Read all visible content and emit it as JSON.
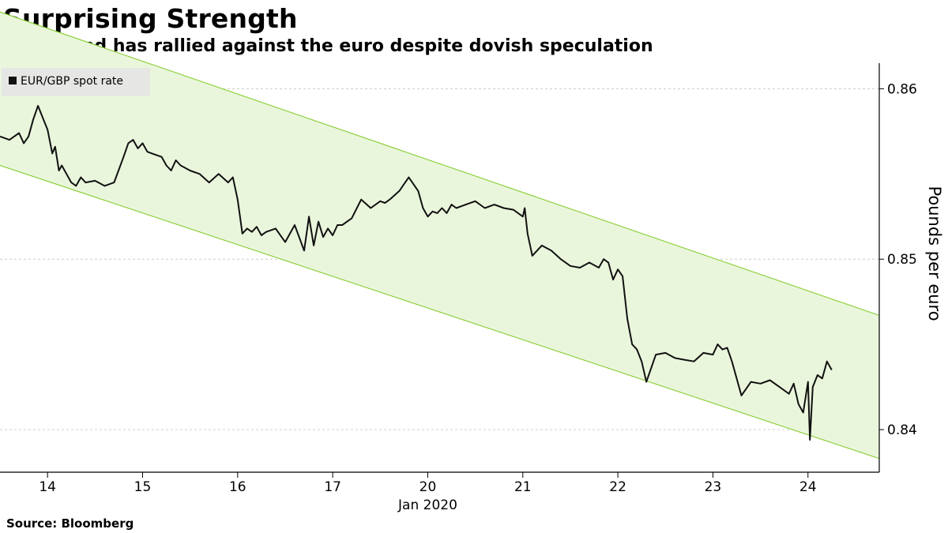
{
  "header": {
    "title": "Surprising Strength",
    "subtitle": "The pound has rallied against the euro despite dovish speculation"
  },
  "footer": {
    "source": "Source: Bloomberg"
  },
  "colors": {
    "line": "#111111",
    "channel_fill": "#eaf6dc",
    "channel_edge": "#8fd13f",
    "grid": "#cccccc"
  },
  "chart_data": {
    "type": "line",
    "title": "Surprising Strength",
    "subtitle": "The pound has rallied against the euro despite dovish speculation",
    "ylabel": "Pounds per euro",
    "xlabel": "Jan 2020",
    "ylim": [
      0.8375,
      0.8615
    ],
    "yticks": [
      0.84,
      0.85,
      0.86
    ],
    "ytick_labels": [
      "0.84",
      "0.85",
      "0.86"
    ],
    "y_axis_side": "right",
    "grid": "horizontal dashed",
    "xticks": [
      {
        "x": 1,
        "label": "14"
      },
      {
        "x": 2,
        "label": "15"
      },
      {
        "x": 3,
        "label": "16"
      },
      {
        "x": 4,
        "label": "17"
      },
      {
        "x": 5,
        "label": "20"
      },
      {
        "x": 6,
        "label": "21"
      },
      {
        "x": 7,
        "label": "22"
      },
      {
        "x": 8,
        "label": "23"
      },
      {
        "x": 9,
        "label": "24"
      }
    ],
    "xlim": [
      0.5,
      9.75
    ],
    "legend": {
      "position": "top-left",
      "entries": [
        "EUR/GBP spot rate"
      ]
    },
    "channel": {
      "upper": [
        {
          "x": 0.5,
          "y": 0.8645
        },
        {
          "x": 9.75,
          "y": 0.8467
        }
      ],
      "lower": [
        {
          "x": 0.5,
          "y": 0.8555
        },
        {
          "x": 9.75,
          "y": 0.8383
        }
      ]
    },
    "series": [
      {
        "name": "EUR/GBP spot rate",
        "x": [
          0.5,
          0.6,
          0.7,
          0.75,
          0.8,
          0.85,
          0.9,
          0.95,
          1.0,
          1.05,
          1.08,
          1.12,
          1.15,
          1.2,
          1.25,
          1.3,
          1.35,
          1.4,
          1.5,
          1.6,
          1.7,
          1.8,
          1.85,
          1.9,
          1.95,
          2.0,
          2.05,
          2.1,
          2.2,
          2.25,
          2.3,
          2.35,
          2.4,
          2.5,
          2.6,
          2.7,
          2.8,
          2.9,
          2.95,
          3.0,
          3.05,
          3.1,
          3.15,
          3.2,
          3.25,
          3.3,
          3.4,
          3.5,
          3.6,
          3.7,
          3.75,
          3.8,
          3.85,
          3.9,
          3.95,
          4.0,
          4.05,
          4.1,
          4.2,
          4.3,
          4.4,
          4.5,
          4.55,
          4.6,
          4.7,
          4.8,
          4.9,
          4.95,
          5.0,
          5.05,
          5.1,
          5.15,
          5.2,
          5.25,
          5.3,
          5.4,
          5.5,
          5.6,
          5.7,
          5.8,
          5.9,
          6.0,
          6.02,
          6.05,
          6.1,
          6.2,
          6.3,
          6.4,
          6.5,
          6.6,
          6.7,
          6.8,
          6.85,
          6.9,
          6.95,
          7.0,
          7.05,
          7.1,
          7.15,
          7.2,
          7.25,
          7.3,
          7.4,
          7.5,
          7.6,
          7.7,
          7.8,
          7.9,
          8.0,
          8.05,
          8.1,
          8.15,
          8.2,
          8.3,
          8.4,
          8.5,
          8.6,
          8.7,
          8.8,
          8.85,
          8.9,
          8.95,
          9.0,
          9.02,
          9.05,
          9.1,
          9.15,
          9.2,
          9.25
        ],
        "values": [
          0.8572,
          0.857,
          0.8574,
          0.8568,
          0.8572,
          0.8582,
          0.859,
          0.8583,
          0.8576,
          0.8562,
          0.8566,
          0.8552,
          0.8555,
          0.855,
          0.8545,
          0.8543,
          0.8548,
          0.8545,
          0.8546,
          0.8543,
          0.8545,
          0.856,
          0.8568,
          0.857,
          0.8565,
          0.8568,
          0.8563,
          0.8562,
          0.856,
          0.8555,
          0.8552,
          0.8558,
          0.8555,
          0.8552,
          0.855,
          0.8545,
          0.855,
          0.8545,
          0.8548,
          0.8535,
          0.8515,
          0.8518,
          0.8516,
          0.8519,
          0.8514,
          0.8516,
          0.8518,
          0.851,
          0.852,
          0.8505,
          0.8525,
          0.8508,
          0.8522,
          0.8513,
          0.8518,
          0.8514,
          0.852,
          0.852,
          0.8524,
          0.8535,
          0.853,
          0.8534,
          0.8533,
          0.8535,
          0.854,
          0.8548,
          0.854,
          0.853,
          0.8525,
          0.8528,
          0.8527,
          0.853,
          0.8527,
          0.8532,
          0.853,
          0.8532,
          0.8534,
          0.853,
          0.8532,
          0.853,
          0.8529,
          0.8525,
          0.853,
          0.8515,
          0.8502,
          0.8508,
          0.8505,
          0.85,
          0.8496,
          0.8495,
          0.8498,
          0.8495,
          0.85,
          0.8498,
          0.8488,
          0.8494,
          0.849,
          0.8465,
          0.845,
          0.8447,
          0.844,
          0.8428,
          0.8444,
          0.8445,
          0.8442,
          0.8441,
          0.844,
          0.8445,
          0.8444,
          0.845,
          0.8447,
          0.8448,
          0.844,
          0.842,
          0.8428,
          0.8427,
          0.8429,
          0.8425,
          0.8421,
          0.8427,
          0.8415,
          0.841,
          0.8428,
          0.8394,
          0.8425,
          0.8432,
          0.843,
          0.844,
          0.8435
        ]
      }
    ]
  }
}
